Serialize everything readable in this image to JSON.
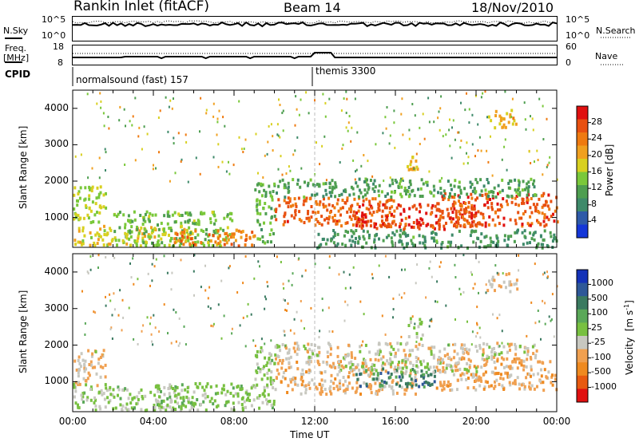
{
  "header": {
    "station": "Rankin Inlet (fitACF)",
    "beam": "Beam 14",
    "date": "18/Nov/2010"
  },
  "noise_panel": {
    "left_label": "N.Sky",
    "right_label": "N.Search",
    "left_ticks": [
      "10^5",
      "10^0"
    ],
    "right_ticks": [
      "10^5",
      "10^0"
    ]
  },
  "freq_panel": {
    "left_label_line1": "Freq.",
    "left_label_line2": "[MHz]",
    "right_label": "Nave",
    "left_ticks": [
      "18",
      "8"
    ],
    "right_ticks": [
      "60",
      "0"
    ]
  },
  "cpid_panel": {
    "label": "CPID",
    "programs": [
      {
        "name": "normalsound (fast) 157",
        "start_hour": 0
      },
      {
        "name": "themis 3300",
        "start_hour": 12
      }
    ]
  },
  "colors": {
    "power_scale": [
      "#1436d8",
      "#2e5aa8",
      "#3e8a6a",
      "#4e9e50",
      "#7ac83a",
      "#d8d020",
      "#f0a020",
      "#ef7a10",
      "#e85010",
      "#e01010"
    ],
    "velocity_scale": [
      "#1432b8",
      "#2e5898",
      "#3a7a60",
      "#5aa858",
      "#78c040",
      "#c8c8c0",
      "#f0a050",
      "#ef8a20",
      "#e85a10",
      "#e01010"
    ]
  },
  "chart_data": [
    {
      "type": "heatmap",
      "name": "power",
      "xlabel": "",
      "ylabel": "Slant Range [km]",
      "xlim": [
        0,
        24
      ],
      "ylim": [
        180,
        4500
      ],
      "yticks": [
        "1000",
        "2000",
        "3000",
        "4000"
      ],
      "colorbar": {
        "label": "Power [dB]",
        "ticks": [
          "28",
          "24",
          "20",
          "16",
          "12",
          "8",
          "4"
        ]
      },
      "echo_regions": [
        {
          "t0": 0.0,
          "t1": 1.6,
          "r0": 900,
          "r1": 1900,
          "value": 16
        },
        {
          "t0": 0.0,
          "t1": 6.0,
          "r0": 250,
          "r1": 800,
          "value": 18
        },
        {
          "t0": 2.0,
          "t1": 8.0,
          "r0": 250,
          "r1": 1200,
          "value": 14
        },
        {
          "t0": 5.0,
          "t1": 9.0,
          "r0": 250,
          "r1": 700,
          "value": 24
        },
        {
          "t0": 9.0,
          "t1": 10.0,
          "r0": 300,
          "r1": 2000,
          "value": 12
        },
        {
          "t0": 10.0,
          "t1": 16.0,
          "r0": 800,
          "r1": 1600,
          "value": 26
        },
        {
          "t0": 14.0,
          "t1": 20.0,
          "r0": 700,
          "r1": 1400,
          "value": 28
        },
        {
          "t0": 18.0,
          "t1": 24.0,
          "r0": 800,
          "r1": 1700,
          "value": 27
        },
        {
          "t0": 10.0,
          "t1": 23.0,
          "r0": 1600,
          "r1": 2100,
          "value": 11
        },
        {
          "t0": 12.0,
          "t1": 24.0,
          "r0": 200,
          "r1": 700,
          "value": 10
        },
        {
          "t0": 16.5,
          "t1": 17.3,
          "r0": 2200,
          "r1": 2800,
          "value": 20
        },
        {
          "t0": 20.5,
          "t1": 22.0,
          "r0": 3500,
          "r1": 4000,
          "value": 20
        }
      ]
    },
    {
      "type": "heatmap",
      "name": "velocity",
      "xlabel": "Time UT",
      "ylabel": "Slant Range [km]",
      "xlim": [
        0,
        24
      ],
      "ylim": [
        180,
        4500
      ],
      "xticks": [
        "00:00",
        "04:00",
        "08:00",
        "12:00",
        "16:00",
        "20:00",
        "00:00"
      ],
      "yticks": [
        "1000",
        "2000",
        "3000",
        "4000"
      ],
      "colorbar": {
        "label": "Velocity [m s^-1]",
        "ticks": [
          "1000",
          "500",
          "100",
          "25",
          "-25",
          "-100",
          "-500",
          "-1000"
        ]
      },
      "echo_regions": [
        {
          "t0": 0.0,
          "t1": 1.6,
          "r0": 900,
          "r1": 1900,
          "value": -200
        },
        {
          "t0": 0.0,
          "t1": 6.0,
          "r0": 250,
          "r1": 900,
          "value": 50
        },
        {
          "t0": 4.0,
          "t1": 9.0,
          "r0": 250,
          "r1": 1000,
          "value": 120
        },
        {
          "t0": 9.0,
          "t1": 10.0,
          "r0": 300,
          "r1": 2000,
          "value": 80
        },
        {
          "t0": 10.0,
          "t1": 17.0,
          "r0": 700,
          "r1": 1600,
          "value": -300
        },
        {
          "t0": 14.0,
          "t1": 18.0,
          "r0": 900,
          "r1": 1400,
          "value": 600
        },
        {
          "t0": 18.0,
          "t1": 24.0,
          "r0": 800,
          "r1": 1700,
          "value": -350
        },
        {
          "t0": 10.0,
          "t1": 23.0,
          "r0": 1600,
          "r1": 2100,
          "value": -150
        },
        {
          "t0": 13.0,
          "t1": 20.0,
          "r0": 1300,
          "r1": 1600,
          "value": 0
        },
        {
          "t0": 16.5,
          "t1": 17.3,
          "r0": 2200,
          "r1": 2800,
          "value": 60
        },
        {
          "t0": 20.5,
          "t1": 22.0,
          "r0": 3500,
          "r1": 4000,
          "value": -250
        }
      ]
    }
  ]
}
